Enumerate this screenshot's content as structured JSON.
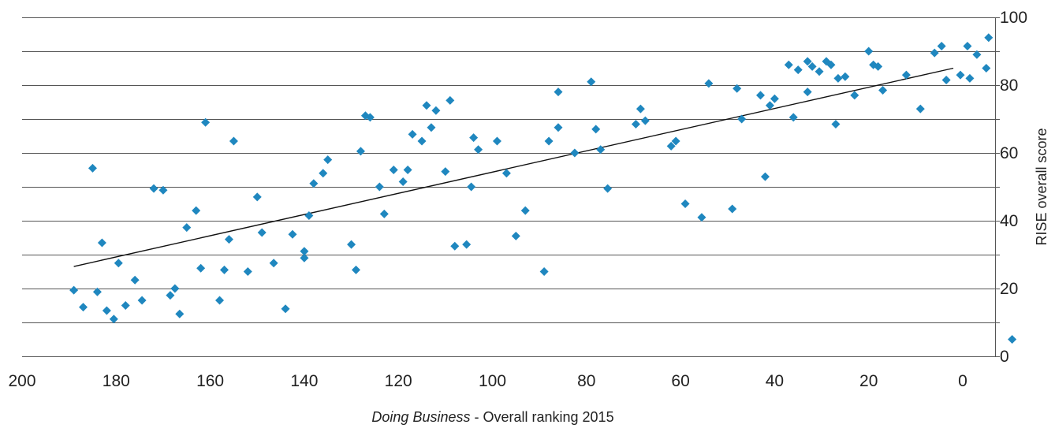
{
  "chart_data": {
    "type": "scatter",
    "title": "",
    "xlabel_italic": "Doing  Business",
    "xlabel_rest": " - Overall ranking 2015",
    "ylabel": "RISE overall score",
    "xlim": [
      200,
      -5
    ],
    "ylim": [
      0,
      100
    ],
    "x_reversed": true,
    "y_axis_side": "right",
    "grid": "horizontal",
    "x_ticks": [
      200,
      180,
      160,
      140,
      120,
      100,
      80,
      60,
      40,
      20,
      0
    ],
    "y_ticks": [
      0,
      20,
      40,
      60,
      80,
      100
    ],
    "marker": "diamond",
    "point_color": "#1f87bf",
    "trend_color": "#111111",
    "trendline": {
      "x": [
        189,
        2
      ],
      "y": [
        26.5,
        85
      ]
    },
    "points": [
      {
        "x": 189,
        "y": 19.5
      },
      {
        "x": 187,
        "y": 14.5
      },
      {
        "x": 185,
        "y": 55.5
      },
      {
        "x": 184,
        "y": 19
      },
      {
        "x": 183,
        "y": 33.5
      },
      {
        "x": 182,
        "y": 13.5
      },
      {
        "x": 180.5,
        "y": 11
      },
      {
        "x": 179.5,
        "y": 27.5
      },
      {
        "x": 178,
        "y": 15
      },
      {
        "x": 176,
        "y": 22.5
      },
      {
        "x": 174.5,
        "y": 16.5
      },
      {
        "x": 172,
        "y": 49.5
      },
      {
        "x": 170,
        "y": 49
      },
      {
        "x": 168.5,
        "y": 18
      },
      {
        "x": 167.5,
        "y": 20
      },
      {
        "x": 166.5,
        "y": 12.5
      },
      {
        "x": 165,
        "y": 38
      },
      {
        "x": 163,
        "y": 43
      },
      {
        "x": 162,
        "y": 26
      },
      {
        "x": 161,
        "y": 69
      },
      {
        "x": 158,
        "y": 16.5
      },
      {
        "x": 157,
        "y": 25.5
      },
      {
        "x": 156,
        "y": 34.5
      },
      {
        "x": 155,
        "y": 63.5
      },
      {
        "x": 152,
        "y": 25
      },
      {
        "x": 150,
        "y": 47
      },
      {
        "x": 149,
        "y": 36.5
      },
      {
        "x": 146.5,
        "y": 27.5
      },
      {
        "x": 144,
        "y": 14
      },
      {
        "x": 142.5,
        "y": 36
      },
      {
        "x": 140,
        "y": 29
      },
      {
        "x": 140,
        "y": 31
      },
      {
        "x": 139,
        "y": 41.5
      },
      {
        "x": 138,
        "y": 51
      },
      {
        "x": 136,
        "y": 54
      },
      {
        "x": 135,
        "y": 58
      },
      {
        "x": 130,
        "y": 33
      },
      {
        "x": 129,
        "y": 25.5
      },
      {
        "x": 128,
        "y": 60.5
      },
      {
        "x": 127,
        "y": 71
      },
      {
        "x": 126,
        "y": 70.5
      },
      {
        "x": 124,
        "y": 50
      },
      {
        "x": 123,
        "y": 42
      },
      {
        "x": 121,
        "y": 55
      },
      {
        "x": 119,
        "y": 51.5
      },
      {
        "x": 118,
        "y": 55
      },
      {
        "x": 117,
        "y": 65.5
      },
      {
        "x": 115,
        "y": 63.5
      },
      {
        "x": 114,
        "y": 74
      },
      {
        "x": 113,
        "y": 67.5
      },
      {
        "x": 112,
        "y": 72.5
      },
      {
        "x": 110,
        "y": 54.5
      },
      {
        "x": 109,
        "y": 75.5
      },
      {
        "x": 108,
        "y": 32.5
      },
      {
        "x": 105.5,
        "y": 33
      },
      {
        "x": 104.5,
        "y": 50
      },
      {
        "x": 104,
        "y": 64.5
      },
      {
        "x": 103,
        "y": 61
      },
      {
        "x": 99,
        "y": 63.5
      },
      {
        "x": 97,
        "y": 54
      },
      {
        "x": 95,
        "y": 35.5
      },
      {
        "x": 93,
        "y": 43
      },
      {
        "x": 89,
        "y": 25
      },
      {
        "x": 88,
        "y": 63.5
      },
      {
        "x": 86,
        "y": 78
      },
      {
        "x": 86,
        "y": 67.5
      },
      {
        "x": 82.5,
        "y": 60
      },
      {
        "x": 79,
        "y": 81
      },
      {
        "x": 78,
        "y": 67
      },
      {
        "x": 77,
        "y": 61
      },
      {
        "x": 75.5,
        "y": 49.5
      },
      {
        "x": 69.5,
        "y": 68.5
      },
      {
        "x": 68.5,
        "y": 73
      },
      {
        "x": 67.5,
        "y": 69.5
      },
      {
        "x": 62,
        "y": 62
      },
      {
        "x": 61,
        "y": 63.5
      },
      {
        "x": 59,
        "y": 45
      },
      {
        "x": 55.5,
        "y": 41
      },
      {
        "x": 54,
        "y": 80.5
      },
      {
        "x": 49,
        "y": 43.5
      },
      {
        "x": 48,
        "y": 79
      },
      {
        "x": 47,
        "y": 70
      },
      {
        "x": 43,
        "y": 77
      },
      {
        "x": 42,
        "y": 53
      },
      {
        "x": 41,
        "y": 74
      },
      {
        "x": 40,
        "y": 76
      },
      {
        "x": 37,
        "y": 86
      },
      {
        "x": 36,
        "y": 70.5
      },
      {
        "x": 35,
        "y": 84.5
      },
      {
        "x": 33,
        "y": 78
      },
      {
        "x": 33,
        "y": 87
      },
      {
        "x": 32,
        "y": 85.5
      },
      {
        "x": 30.5,
        "y": 84
      },
      {
        "x": 29,
        "y": 87
      },
      {
        "x": 28,
        "y": 86
      },
      {
        "x": 27,
        "y": 68.5
      },
      {
        "x": 26.5,
        "y": 82
      },
      {
        "x": 25,
        "y": 82.5
      },
      {
        "x": 23,
        "y": 77
      },
      {
        "x": 20,
        "y": 90
      },
      {
        "x": 19,
        "y": 86
      },
      {
        "x": 18,
        "y": 85.5
      },
      {
        "x": 17,
        "y": 78.5
      },
      {
        "x": 12,
        "y": 83
      },
      {
        "x": 9,
        "y": 73
      },
      {
        "x": 6,
        "y": 89.5
      },
      {
        "x": 4.5,
        "y": 91.5
      },
      {
        "x": 3.5,
        "y": 81.5
      },
      {
        "x": 0.5,
        "y": 83
      },
      {
        "x": -1.5,
        "y": 82
      },
      {
        "x": -1,
        "y": 91.5
      },
      {
        "x": -3,
        "y": 89
      },
      {
        "x": -5,
        "y": 85
      },
      {
        "x": -5.5,
        "y": 94
      },
      {
        "x": -10.5,
        "y": 5
      }
    ]
  }
}
